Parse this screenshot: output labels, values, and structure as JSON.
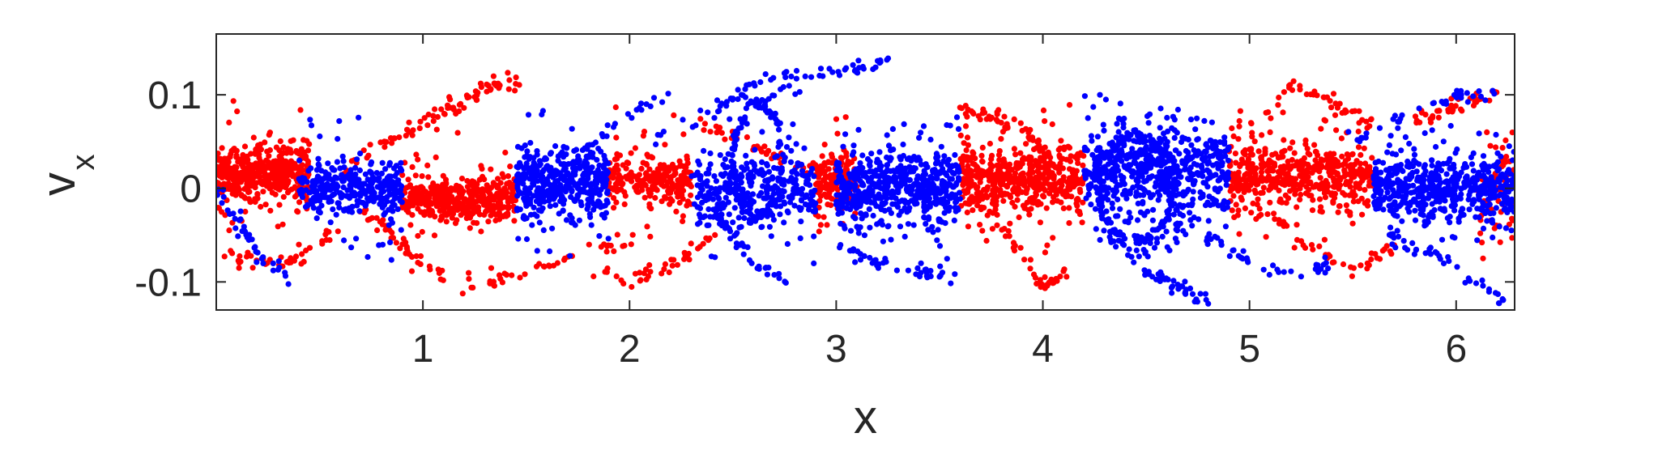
{
  "chart_data": {
    "type": "scatter",
    "title": "",
    "xlabel": "x",
    "ylabel_main": "v",
    "ylabel_sub": "x",
    "xlim": [
      0,
      6.283
    ],
    "ylim": [
      -0.13,
      0.165
    ],
    "xticks": [
      1,
      2,
      3,
      4,
      5,
      6
    ],
    "xtick_labels": [
      "1",
      "2",
      "3",
      "4",
      "5",
      "6"
    ],
    "yticks": [
      -0.1,
      0,
      0.1
    ],
    "ytick_labels": [
      "-0.1",
      "0",
      "0.1"
    ],
    "grid": false,
    "legend": "none",
    "series": [
      {
        "color": "#ff0000",
        "clusters": [
          {
            "x0": 0.0,
            "x1": 0.45,
            "ymean": 0.018,
            "ysd": 0.014,
            "count": 420
          },
          {
            "x0": 0.9,
            "x1": 1.45,
            "ymean": -0.012,
            "ysd": 0.012,
            "count": 380
          },
          {
            "x0": 1.9,
            "x1": 2.3,
            "ymean": 0.008,
            "ysd": 0.012,
            "count": 220
          },
          {
            "x0": 2.9,
            "x1": 3.1,
            "ymean": 0.01,
            "ysd": 0.015,
            "count": 160
          },
          {
            "x0": 3.6,
            "x1": 4.2,
            "ymean": 0.01,
            "ysd": 0.02,
            "count": 480
          },
          {
            "x0": 4.9,
            "x1": 5.6,
            "ymean": 0.012,
            "ysd": 0.018,
            "count": 460
          },
          {
            "x0": 6.1,
            "x1": 6.283,
            "ymean": 0.0,
            "ysd": 0.025,
            "count": 60
          }
        ],
        "strands": [
          {
            "x": [
              0.05,
              0.2,
              0.4,
              0.6
            ],
            "y": [
              -0.075,
              -0.08,
              -0.078,
              -0.04
            ]
          },
          {
            "x": [
              0.6,
              0.9,
              1.2,
              1.42
            ],
            "y": [
              0.02,
              0.06,
              0.095,
              0.122
            ]
          },
          {
            "x": [
              0.8,
              1.1,
              1.3,
              1.5
            ],
            "y": [
              0.04,
              0.08,
              0.105,
              0.115
            ]
          },
          {
            "x": [
              0.7,
              0.9,
              1.1
            ],
            "y": [
              -0.02,
              -0.06,
              -0.095
            ]
          },
          {
            "x": [
              1.2,
              1.5,
              1.8,
              2.0
            ],
            "y": [
              -0.105,
              -0.09,
              -0.07,
              -0.055
            ]
          },
          {
            "x": [
              1.8,
              2.0,
              2.2,
              2.4
            ],
            "y": [
              -0.085,
              -0.1,
              -0.08,
              -0.05
            ]
          },
          {
            "x": [
              2.3,
              2.6,
              2.9
            ],
            "y": [
              0.07,
              0.045,
              0.02
            ]
          },
          {
            "x": [
              3.7,
              3.9,
              4.0,
              4.1
            ],
            "y": [
              -0.02,
              -0.07,
              -0.105,
              -0.09
            ]
          },
          {
            "x": [
              3.6,
              3.8,
              4.0
            ],
            "y": [
              0.085,
              0.075,
              0.05
            ]
          },
          {
            "x": [
              5.0,
              5.2,
              5.4,
              5.6
            ],
            "y": [
              0.06,
              0.11,
              0.095,
              0.07
            ]
          },
          {
            "x": [
              5.1,
              5.3,
              5.5,
              5.7
            ],
            "y": [
              -0.03,
              -0.06,
              -0.09,
              -0.06
            ]
          },
          {
            "x": [
              5.8,
              6.0,
              6.2
            ],
            "y": [
              0.07,
              0.09,
              0.1
            ]
          }
        ]
      },
      {
        "color": "#0000ff",
        "clusters": [
          {
            "x0": 0.4,
            "x1": 0.9,
            "ymean": 0.0,
            "ysd": 0.013,
            "count": 320
          },
          {
            "x0": 1.45,
            "x1": 1.9,
            "ymean": 0.005,
            "ysd": 0.018,
            "count": 380
          },
          {
            "x0": 2.3,
            "x1": 2.9,
            "ymean": -0.005,
            "ysd": 0.02,
            "count": 320
          },
          {
            "x0": 3.0,
            "x1": 3.6,
            "ymean": 0.0,
            "ysd": 0.018,
            "count": 520
          },
          {
            "x0": 4.2,
            "x1": 4.9,
            "ymean": 0.02,
            "ysd": 0.022,
            "count": 520
          },
          {
            "x0": 5.6,
            "x1": 6.283,
            "ymean": 0.0,
            "ysd": 0.018,
            "count": 520
          }
        ],
        "strands": [
          {
            "x": [
              0.0,
              0.1,
              0.2,
              0.35
            ],
            "y": [
              0.0,
              -0.03,
              -0.07,
              -0.095
            ]
          },
          {
            "x": [
              1.5,
              1.8,
              2.0,
              2.2
            ],
            "y": [
              -0.04,
              0.04,
              0.085,
              0.095
            ]
          },
          {
            "x": [
              2.1,
              2.4,
              2.6,
              2.8
            ],
            "y": [
              0.05,
              0.08,
              0.11,
              0.122
            ]
          },
          {
            "x": [
              2.6,
              2.85,
              3.1,
              3.25
            ],
            "y": [
              0.09,
              0.115,
              0.13,
              0.135
            ]
          },
          {
            "x": [
              2.4,
              2.5,
              2.6,
              2.75
            ],
            "y": [
              -0.02,
              -0.05,
              -0.08,
              -0.1
            ]
          },
          {
            "x": [
              3.0,
              3.2,
              3.4,
              3.6
            ],
            "y": [
              -0.06,
              -0.08,
              -0.09,
              -0.095
            ]
          },
          {
            "x": [
              4.3,
              4.4,
              4.6,
              4.75
            ],
            "y": [
              -0.04,
              -0.07,
              -0.06,
              -0.03
            ]
          },
          {
            "x": [
              4.8,
              5.0,
              5.2,
              5.4
            ],
            "y": [
              -0.05,
              -0.08,
              -0.095,
              -0.08
            ]
          },
          {
            "x": [
              4.5,
              4.6,
              4.7,
              4.8
            ],
            "y": [
              -0.09,
              -0.1,
              -0.11,
              -0.12
            ]
          },
          {
            "x": [
              5.6,
              5.9,
              6.1,
              6.25
            ],
            "y": [
              -0.04,
              -0.07,
              -0.1,
              -0.12
            ]
          },
          {
            "x": [
              5.5,
              5.8,
              6.0,
              6.2
            ],
            "y": [
              0.05,
              0.08,
              0.1,
              0.1
            ]
          }
        ],
        "loops": [
          {
            "cx": 4.45,
            "cy": 0.0,
            "rx": 0.18,
            "ry": 0.055,
            "count": 160
          },
          {
            "cx": 2.62,
            "cy": 0.03,
            "rx": 0.12,
            "ry": 0.06,
            "count": 110
          }
        ]
      }
    ]
  }
}
